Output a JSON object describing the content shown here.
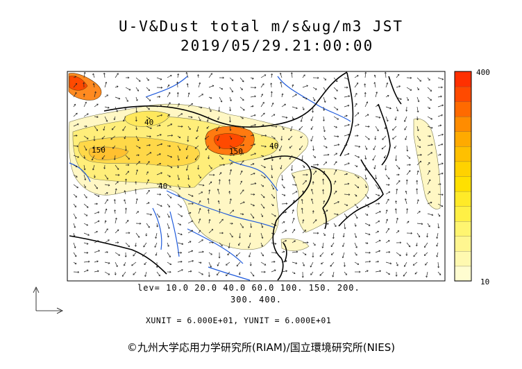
{
  "title": {
    "line1": "U-V&Dust total m/s&ug/m3 JST",
    "line2": "2019/05/29.21:00:00"
  },
  "colorbar": {
    "max_label": "400",
    "min_label": "10",
    "colors": [
      "#fffdd0",
      "#fff9b0",
      "#fff690",
      "#fff570",
      "#fff045",
      "#ffea28",
      "#ffe000",
      "#ffd200",
      "#ffc000",
      "#ffaa00",
      "#ff8c00",
      "#ff6a00",
      "#ff4a00",
      "#ff3000"
    ]
  },
  "footer": {
    "levels_line1": "lev= 10.0 20.0 40.0 60.0 100. 150. 200.",
    "levels_line2": "300. 400.",
    "unit_line": "XUNIT = 6.000E+01, YUNIT = 6.000E+01",
    "copyright": "©九州大学応用力学研究所(RIAM)/国立環境研究所(NIES)"
  },
  "map_labels": {
    "contour_150_left": "150",
    "contour_150_right": "150",
    "contour_40_mid": "40",
    "contour_40_right": "40",
    "contour_40_upper": "40"
  },
  "colors": {
    "dust_low": "#fff5b8",
    "dust_mid": "#ffe866",
    "dust_high": "#ffcc33",
    "dust_peak": "#ff5a00",
    "coast": "#000000",
    "river": "#1e5adc"
  }
}
